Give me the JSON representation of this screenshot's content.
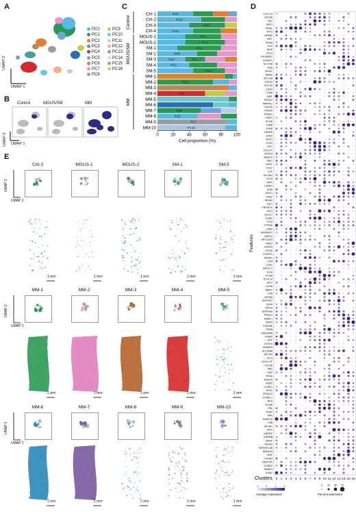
{
  "panels": {
    "a": "A",
    "b": "B",
    "c": "C",
    "d": "D",
    "e": "E"
  },
  "umap": {
    "x": "UMAP 1",
    "y": "UMAP 2"
  },
  "legend_a": {
    "items": [
      {
        "label": "PC0",
        "color": "#57b8e6"
      },
      {
        "label": "PC1",
        "color": "#2a9a53"
      },
      {
        "label": "PC2",
        "color": "#e67e2d"
      },
      {
        "label": "PC3",
        "color": "#4a9e9a"
      },
      {
        "label": "PC4",
        "color": "#d62a2a"
      },
      {
        "label": "PC5",
        "color": "#6da3d6"
      },
      {
        "label": "PC6",
        "color": "#b58b5b"
      },
      {
        "label": "PC7",
        "color": "#e995c9"
      },
      {
        "label": "PC8",
        "color": "#9e9e9e"
      },
      {
        "label": "PC9",
        "color": "#bfcf3a"
      },
      {
        "label": "PC10",
        "color": "#67c9d6"
      },
      {
        "label": "PC11",
        "color": "#c6c8e6"
      },
      {
        "label": "PC12",
        "color": "#f4b183"
      },
      {
        "label": "PC13",
        "color": "#7d9fcd"
      },
      {
        "label": "PC14",
        "color": "#f5d5a9"
      },
      {
        "label": "PC15",
        "color": "#9e9e9e"
      },
      {
        "label": "PC16",
        "color": "#e6c74a"
      }
    ]
  },
  "panel_b": {
    "groups": [
      "Control",
      "MGUS/SM",
      "MM"
    ]
  },
  "chart_data": {
    "type": "bar",
    "orientation": "horizontal-stacked",
    "xlabel": "Cell proportion (%)",
    "xlim": [
      0,
      100
    ],
    "xticks": [
      0,
      20,
      40,
      60,
      80,
      100
    ],
    "groups": [
      {
        "label": "Control",
        "rows": [
          "Ctrl-1",
          "Ctrl-2",
          "Ctrl-3",
          "Ctrl-4"
        ]
      },
      {
        "label": "MGUS/SM",
        "rows": [
          "MGUS-1",
          "MGUS-2",
          "SM-1",
          "SM-2",
          "SM-3",
          "SM-4",
          "SM-5"
        ]
      },
      {
        "label": "MM",
        "rows": [
          "MM-1",
          "MM-2",
          "MM-3",
          "MM-4",
          "MM-5",
          "MM-6",
          "MM-7",
          "MM-8",
          "MM-9",
          "MM-10"
        ]
      }
    ],
    "categories": [
      "Ctrl-1",
      "Ctrl-2",
      "Ctrl-3",
      "Ctrl-4",
      "MGUS-1",
      "MGUS-2",
      "SM-1",
      "SM-2",
      "SM-3",
      "SM-4",
      "SM-5",
      "MM-1",
      "MM-2",
      "MM-3",
      "MM-4",
      "MM-5",
      "MM-6",
      "MM-7",
      "MM-8",
      "MM-9",
      "MM-10"
    ],
    "rows": [
      {
        "segs": [
          [
            45,
            "#57b8e6",
            "PC0"
          ],
          [
            25,
            "#2a9a53",
            ""
          ],
          [
            20,
            "#e67e2d",
            ""
          ],
          [
            10,
            "#6da3d6",
            ""
          ]
        ]
      },
      {
        "segs": [
          [
            55,
            "#57b8e6",
            "PC0"
          ],
          [
            30,
            "#2a9a53",
            ""
          ],
          [
            15,
            "#e995c9",
            ""
          ]
        ]
      },
      {
        "segs": [
          [
            40,
            "#57b8e6",
            ""
          ],
          [
            45,
            "#2a9a53",
            "PC1"
          ],
          [
            15,
            "#bfcf3a",
            ""
          ]
        ]
      },
      {
        "segs": [
          [
            45,
            "#57b8e6",
            "PC0"
          ],
          [
            35,
            "#2a9a53",
            ""
          ],
          [
            20,
            "#e67e2d",
            ""
          ]
        ]
      },
      {
        "segs": [
          [
            35,
            "#57b8e6",
            ""
          ],
          [
            45,
            "#2a9a53",
            "PC1"
          ],
          [
            20,
            "#e995c9",
            ""
          ]
        ]
      },
      {
        "segs": [
          [
            35,
            "#57b8e6",
            ""
          ],
          [
            50,
            "#2a9a53",
            "PC1"
          ],
          [
            15,
            "#e995c9",
            ""
          ]
        ]
      },
      {
        "segs": [
          [
            25,
            "#57b8e6",
            ""
          ],
          [
            55,
            "#2a9a53",
            "PC1"
          ],
          [
            20,
            "#e995c9",
            ""
          ]
        ]
      },
      {
        "segs": [
          [
            50,
            "#57b8e6",
            "PC0"
          ],
          [
            25,
            "#2a9a53",
            ""
          ],
          [
            25,
            "#e995c9",
            ""
          ]
        ]
      },
      {
        "segs": [
          [
            35,
            "#57b8e6",
            "PC0"
          ],
          [
            25,
            "#2a9a53",
            "PC1"
          ],
          [
            25,
            "#e995c9",
            ""
          ],
          [
            15,
            "#e67e2d",
            ""
          ]
        ]
      },
      {
        "segs": [
          [
            40,
            "#57b8e6",
            "PC0"
          ],
          [
            35,
            "#2a9a53",
            ""
          ],
          [
            25,
            "#e995c9",
            ""
          ]
        ]
      },
      {
        "segs": [
          [
            45,
            "#57b8e6",
            ""
          ],
          [
            40,
            "#2a9a53",
            "PC1"
          ],
          [
            15,
            "#e995c9",
            ""
          ]
        ]
      },
      {
        "segs": [
          [
            85,
            "#e67e2d",
            ""
          ],
          [
            10,
            "#2a9a53",
            ""
          ],
          [
            5,
            "#57b8e6",
            ""
          ]
        ]
      },
      {
        "segs": [
          [
            70,
            "#2a9a53",
            "PC2"
          ],
          [
            20,
            "#57b8e6",
            ""
          ],
          [
            10,
            "#e995c9",
            ""
          ]
        ]
      },
      {
        "segs": [
          [
            75,
            "#b58b5b",
            ""
          ],
          [
            15,
            "#e67e2d",
            ""
          ],
          [
            10,
            "#57b8e6",
            ""
          ]
        ]
      },
      {
        "segs": [
          [
            60,
            "#d62a2a",
            "PC4"
          ],
          [
            25,
            "#bfcf3a",
            ""
          ],
          [
            15,
            "#e995c9",
            ""
          ]
        ]
      },
      {
        "segs": [
          [
            90,
            "#67c9d6",
            ""
          ],
          [
            10,
            "#2a9a53",
            ""
          ]
        ]
      },
      {
        "segs": [
          [
            70,
            "#2a6fb0",
            ""
          ],
          [
            20,
            "#67c9d6",
            ""
          ],
          [
            10,
            "#57b8e6",
            ""
          ]
        ]
      },
      {
        "segs": [
          [
            55,
            "#2a9a53",
            "PC6"
          ],
          [
            25,
            "#6da3d6",
            ""
          ],
          [
            20,
            "#c6c8e6",
            ""
          ]
        ]
      },
      {
        "segs": [
          [
            50,
            "#57b8e6",
            "PC0"
          ],
          [
            30,
            "#e995c9",
            ""
          ],
          [
            20,
            "#2a9a53",
            ""
          ]
        ]
      },
      {
        "segs": [
          [
            90,
            "#9e9e9e",
            "PC7"
          ],
          [
            10,
            "#57b8e6",
            ""
          ]
        ]
      },
      {
        "segs": [
          [
            85,
            "#a9c4e6",
            "PC10"
          ],
          [
            15,
            "#57b8e6",
            ""
          ]
        ]
      }
    ]
  },
  "panel_d": {
    "ylabel": "Features",
    "xlabel": "Clusters",
    "clusters": [
      "0",
      "1",
      "2",
      "3",
      "4",
      "5",
      "6",
      "7",
      "8",
      "9",
      "10",
      "11",
      "12",
      "13",
      "14",
      "15",
      "16"
    ],
    "features": [
      "CXCL10",
      "DDX58",
      "TNC",
      "GBP1",
      "IFI44L",
      "IFIT2",
      "GPR83",
      "MET",
      "ITGB3",
      "STX",
      "ADM",
      "STC2",
      "EIF4EBP1",
      "SCPEP1",
      "SLC7A5",
      "GAA",
      "MCM7",
      "RRM2",
      "MYO1B",
      "P2RY6",
      "SOCS3",
      "LAG3",
      "CYBA",
      "MIAT",
      "RUNX2",
      "MAP4K1",
      "TOP2A",
      "CALM3",
      "STMN1",
      "FANCI",
      "PCNA",
      "TUBB",
      "TYMS",
      "HDAF6",
      "OAS1",
      "NCF1",
      "CCR2",
      "MX1",
      "GLCCI1",
      "SSTR3",
      "MERTK",
      "MPO",
      "SOST",
      "CD27",
      "LEF",
      "SLC4A1",
      "CD19",
      "TAP1",
      "LAMP3",
      "IFI35",
      "STAT1",
      "OAS2",
      "IRGM2",
      "IFIT1",
      "TNFSF10",
      "IFIT3",
      "UCHL1",
      "IL2RG",
      "TCF4",
      "PTPN6",
      "LTBR",
      "ARHGEF2",
      "DERL2",
      "KRTCAP2",
      "NSD2",
      "FGFR3",
      "CIP2A",
      "CX3CR1",
      "MS4A1",
      "CD4",
      "CCR1",
      "SPECC1",
      "TLR4",
      "PYGB",
      "KLHL14",
      "IPO7",
      "LDHA",
      "IRAK1",
      "C4A",
      "NFKB2",
      "SEPTIN7",
      "CD44",
      "MYH9",
      "SEPTIN9",
      "PRKD3",
      "DNMT1",
      "ITPR3",
      "CSF2RB",
      "FRZB",
      "GADD45A",
      "ICAM3",
      "APP",
      "CXCR4",
      "ADAM10",
      "SLC39A8",
      "MCTP2",
      "FLT3",
      "SOX2-OT",
      "CD79A",
      "RB1",
      "HGF",
      "RCN2",
      "PDRX2",
      "MZB1",
      "CCND1",
      "SHFL",
      "NT5DC2",
      "CTHRC1",
      "NES",
      "EVI2B",
      "FBL",
      "PHB2",
      "SPN",
      "SNHG15",
      "C4B",
      "EIF4A1",
      "MYC",
      "INPP5F",
      "EDNRB",
      "NDNF",
      "DEFA1",
      "TNFRSF13B",
      "MAN1A1",
      "MAF",
      "CFLAR",
      "DEPTOR",
      "CCND2",
      "SMAD3",
      "ITGB7"
    ],
    "legend_expr": "Average expression",
    "legend_pct": "Percent expressed",
    "expr_ticks": [
      "-1",
      "0",
      "1",
      "2"
    ],
    "pct_ticks": [
      "0",
      "25",
      "50",
      "75"
    ]
  },
  "panel_e": {
    "row1": [
      "Ctrl-3",
      "MGUS-1",
      "MGUS-2",
      "SM-1",
      "SM-5"
    ],
    "row2": [
      "MM-1",
      "MM-2",
      "MM-3",
      "MM-4",
      "MM-5"
    ],
    "row3": [
      "MM-6",
      "MM-7",
      "MM-8",
      "MM-9",
      "MM-10"
    ],
    "scale": "1 mm"
  }
}
